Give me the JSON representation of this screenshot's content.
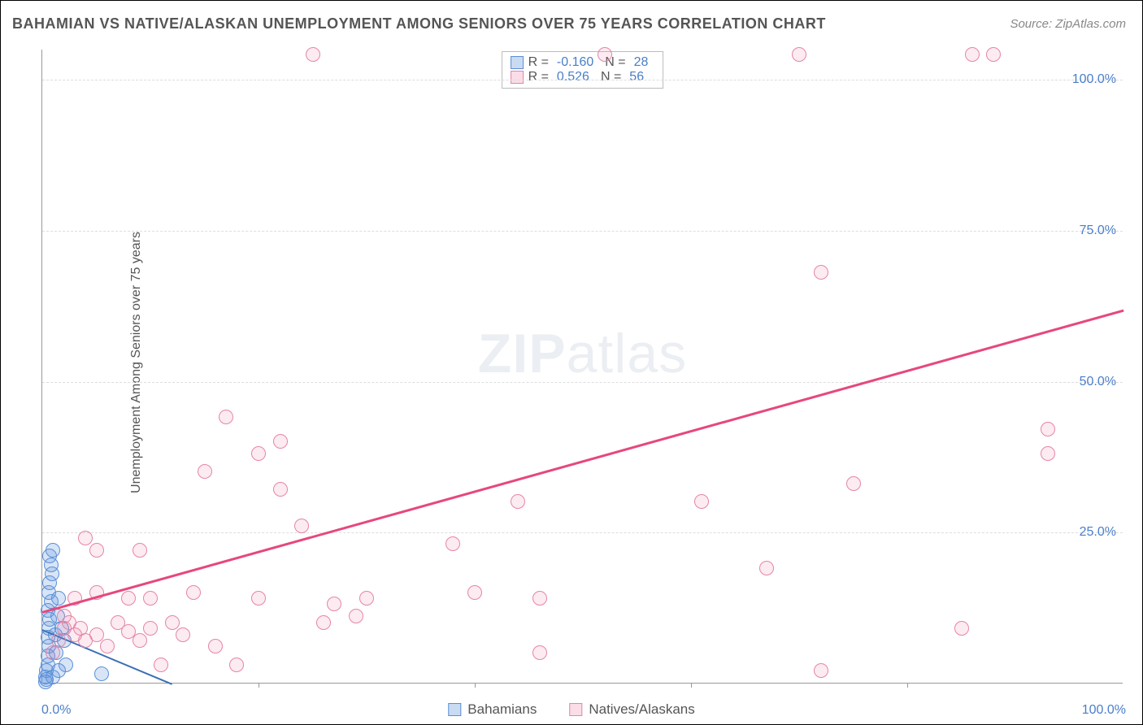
{
  "title": "BAHAMIAN VS NATIVE/ALASKAN UNEMPLOYMENT AMONG SENIORS OVER 75 YEARS CORRELATION CHART",
  "source": "Source: ZipAtlas.com",
  "y_axis_label": "Unemployment Among Seniors over 75 years",
  "watermark_bold": "ZIP",
  "watermark_light": "atlas",
  "chart": {
    "type": "scatter",
    "background_color": "#ffffff",
    "grid_color": "#dddddd",
    "axis_color": "#999999",
    "tick_label_color": "#4a7ec9",
    "xlim": [
      0,
      100
    ],
    "ylim": [
      0,
      105
    ],
    "y_ticks": [
      {
        "value": 25,
        "label": "25.0%"
      },
      {
        "value": 50,
        "label": "50.0%"
      },
      {
        "value": 75,
        "label": "75.0%"
      },
      {
        "value": 100,
        "label": "100.0%"
      }
    ],
    "x_ticks": [
      {
        "value": 0,
        "label": "0.0%"
      },
      {
        "value": 20,
        "label": ""
      },
      {
        "value": 40,
        "label": ""
      },
      {
        "value": 60,
        "label": ""
      },
      {
        "value": 80,
        "label": ""
      },
      {
        "value": 100,
        "label": "100.0%"
      }
    ],
    "marker_radius": 9,
    "series": [
      {
        "name": "Bahamians",
        "color_fill": "rgba(99,152,222,0.25)",
        "color_stroke": "#5a8fd6",
        "correlation_R": "-0.160",
        "N": "28",
        "trend": {
          "x1": 0,
          "y1": 9,
          "x2": 12,
          "y2": 0,
          "color": "#3b6fb5",
          "width": 2
        },
        "points": [
          {
            "x": 0.3,
            "y": 1
          },
          {
            "x": 0.4,
            "y": 2
          },
          {
            "x": 0.5,
            "y": 3
          },
          {
            "x": 0.5,
            "y": 4.5
          },
          {
            "x": 0.6,
            "y": 6
          },
          {
            "x": 0.5,
            "y": 7.5
          },
          {
            "x": 0.6,
            "y": 9
          },
          {
            "x": 0.7,
            "y": 10.5
          },
          {
            "x": 0.5,
            "y": 12
          },
          {
            "x": 0.8,
            "y": 13.5
          },
          {
            "x": 0.6,
            "y": 15
          },
          {
            "x": 0.7,
            "y": 16.5
          },
          {
            "x": 0.9,
            "y": 18
          },
          {
            "x": 0.8,
            "y": 19.5
          },
          {
            "x": 0.7,
            "y": 21
          },
          {
            "x": 1.0,
            "y": 22
          },
          {
            "x": 1.2,
            "y": 8
          },
          {
            "x": 1.4,
            "y": 11
          },
          {
            "x": 1.5,
            "y": 14
          },
          {
            "x": 1.3,
            "y": 5
          },
          {
            "x": 1.8,
            "y": 9
          },
          {
            "x": 2.0,
            "y": 7
          },
          {
            "x": 2.2,
            "y": 3
          },
          {
            "x": 0.4,
            "y": 0.5
          },
          {
            "x": 0.3,
            "y": 0.2
          },
          {
            "x": 5.5,
            "y": 1.5
          },
          {
            "x": 1.0,
            "y": 1
          },
          {
            "x": 1.5,
            "y": 2
          }
        ]
      },
      {
        "name": "Natives/Alaskans",
        "color_fill": "rgba(234,120,160,0.15)",
        "color_stroke": "#e585a8",
        "correlation_R": "0.526",
        "N": "56",
        "trend": {
          "x1": 0,
          "y1": 12,
          "x2": 100,
          "y2": 62,
          "color": "#e6487c",
          "width": 2.5
        },
        "points": [
          {
            "x": 1,
            "y": 5
          },
          {
            "x": 1.5,
            "y": 7
          },
          {
            "x": 2,
            "y": 9
          },
          {
            "x": 2,
            "y": 11
          },
          {
            "x": 2.5,
            "y": 10
          },
          {
            "x": 3,
            "y": 8
          },
          {
            "x": 3,
            "y": 14
          },
          {
            "x": 3.5,
            "y": 9
          },
          {
            "x": 4,
            "y": 7
          },
          {
            "x": 4,
            "y": 24
          },
          {
            "x": 5,
            "y": 8
          },
          {
            "x": 5,
            "y": 22
          },
          {
            "x": 6,
            "y": 6
          },
          {
            "x": 7,
            "y": 10
          },
          {
            "x": 8,
            "y": 8.5
          },
          {
            "x": 8,
            "y": 14
          },
          {
            "x": 9,
            "y": 7
          },
          {
            "x": 9,
            "y": 22
          },
          {
            "x": 10,
            "y": 9
          },
          {
            "x": 10,
            "y": 14
          },
          {
            "x": 11,
            "y": 3
          },
          {
            "x": 12,
            "y": 10
          },
          {
            "x": 13,
            "y": 8
          },
          {
            "x": 14,
            "y": 15
          },
          {
            "x": 15,
            "y": 35
          },
          {
            "x": 16,
            "y": 6
          },
          {
            "x": 17,
            "y": 44
          },
          {
            "x": 18,
            "y": 3
          },
          {
            "x": 20,
            "y": 38
          },
          {
            "x": 20,
            "y": 14
          },
          {
            "x": 22,
            "y": 40
          },
          {
            "x": 22,
            "y": 32
          },
          {
            "x": 24,
            "y": 26
          },
          {
            "x": 25,
            "y": 104
          },
          {
            "x": 26,
            "y": 10
          },
          {
            "x": 27,
            "y": 13
          },
          {
            "x": 29,
            "y": 11
          },
          {
            "x": 30,
            "y": 14
          },
          {
            "x": 38,
            "y": 23
          },
          {
            "x": 40,
            "y": 15
          },
          {
            "x": 44,
            "y": 30
          },
          {
            "x": 46,
            "y": 5
          },
          {
            "x": 46,
            "y": 14
          },
          {
            "x": 52,
            "y": 104
          },
          {
            "x": 61,
            "y": 30
          },
          {
            "x": 67,
            "y": 19
          },
          {
            "x": 70,
            "y": 104
          },
          {
            "x": 72,
            "y": 68
          },
          {
            "x": 72,
            "y": 2
          },
          {
            "x": 75,
            "y": 33
          },
          {
            "x": 85,
            "y": 9
          },
          {
            "x": 86,
            "y": 104
          },
          {
            "x": 88,
            "y": 104
          },
          {
            "x": 93,
            "y": 42
          },
          {
            "x": 93,
            "y": 38
          },
          {
            "x": 5,
            "y": 15
          }
        ]
      }
    ]
  },
  "stat_legend": {
    "rows": [
      {
        "swatch": "blue",
        "R_label": "R =",
        "R_value": "-0.160",
        "N_label": "N =",
        "N_value": "28"
      },
      {
        "swatch": "pink",
        "R_label": "R =",
        "R_value": "0.526",
        "N_label": "N =",
        "N_value": "56"
      }
    ]
  },
  "bottom_legend": {
    "items": [
      {
        "swatch": "blue",
        "label": "Bahamians"
      },
      {
        "swatch": "pink",
        "label": "Natives/Alaskans"
      }
    ]
  }
}
